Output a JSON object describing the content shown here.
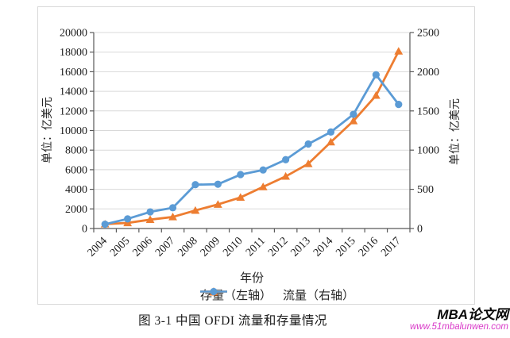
{
  "caption": "图 3-1  中国 OFDI 流量和存量情况",
  "watermark": {
    "brand": "MBA论文网",
    "url": "www.51mbalunwen.com"
  },
  "chart_data": {
    "type": "line",
    "title": "",
    "xlabel": "年份",
    "categories": [
      "2004",
      "2005",
      "2006",
      "2007",
      "2008",
      "2009",
      "2010",
      "2011",
      "2012",
      "2013",
      "2014",
      "2015",
      "2016",
      "2017"
    ],
    "series": [
      {
        "name": "存量（左轴）",
        "axis": "left",
        "color": "#ED7D31",
        "marker": "triangle",
        "values": [
          448,
          572,
          906,
          1179,
          1840,
          2458,
          3172,
          4248,
          5319,
          6605,
          8826,
          10979,
          13574,
          18090
        ]
      },
      {
        "name": "流量（右轴）",
        "axis": "right",
        "color": "#5B9BD5",
        "marker": "circle",
        "values": [
          55,
          123,
          212,
          265,
          559,
          565,
          688,
          747,
          878,
          1078,
          1231,
          1457,
          1961,
          1583
        ]
      }
    ],
    "left_axis": {
      "label": "单位：亿美元",
      "min": 0,
      "max": 20000,
      "step": 2000
    },
    "right_axis": {
      "label": "单位：亿美元",
      "min": 0,
      "max": 2500,
      "step": 500
    },
    "grid": true,
    "legend_position": "bottom",
    "colors": {
      "grid": "#D9D9D9",
      "axis": "#595959",
      "tick_label": "#1a1a1a"
    }
  }
}
